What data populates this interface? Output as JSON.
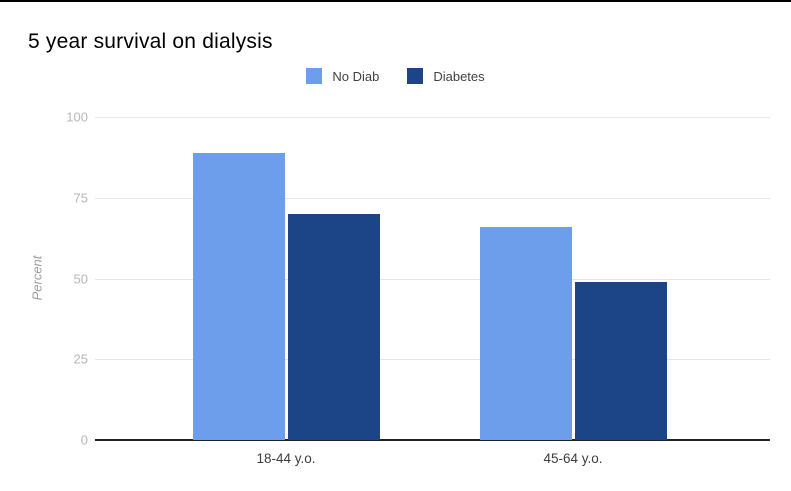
{
  "page": {
    "top_border_color": "#000000",
    "background": "#ffffff"
  },
  "chart_data": {
    "type": "bar",
    "title": "5 year survival on dialysis",
    "categories": [
      "18-44 y.o.",
      "45-64 y.o."
    ],
    "series": [
      {
        "name": "No Diab",
        "color": "#6d9eeb",
        "values": [
          89,
          66
        ]
      },
      {
        "name": "Diabetes",
        "color": "#1c4587",
        "values": [
          70,
          49
        ]
      }
    ],
    "xlabel": "",
    "ylabel": "Percent",
    "ylim": [
      0,
      100
    ],
    "yticks": [
      0,
      25,
      50,
      75,
      100
    ],
    "grid": true,
    "legend_position": "top-center",
    "colors": {
      "grid": "#e6e6e6",
      "baseline": "#212121",
      "tick_label": "#b7b7b7",
      "axis_title": "#9e9e9e",
      "category_label": "#3c3c3c",
      "title": "#000000",
      "legend_label": "#424242"
    }
  }
}
